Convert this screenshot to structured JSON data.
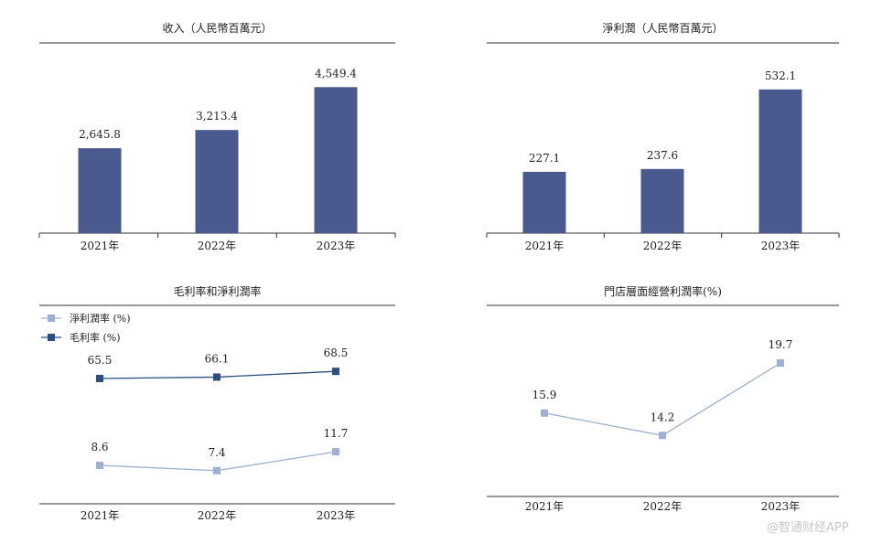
{
  "colors": {
    "bar": "#4a5a8e",
    "line_dark": "#2c4f80",
    "line_light": "#9db0d2",
    "axis": "#333333"
  },
  "watermark": "@智通财经APP",
  "chart_data": [
    {
      "id": "revenue",
      "type": "bar",
      "title": "收入（人民幣百萬元）",
      "categories": [
        "2021年",
        "2022年",
        "2023年"
      ],
      "values": [
        2645.8,
        3213.4,
        4549.4
      ],
      "value_labels": [
        "2,645.8",
        "3,213.4",
        "4,549.4"
      ],
      "ylim": [
        0,
        4700
      ]
    },
    {
      "id": "net-profit",
      "type": "bar",
      "title": "淨利潤（人民幣百萬元）",
      "categories": [
        "2021年",
        "2022年",
        "2023年"
      ],
      "values": [
        227.1,
        237.6,
        532.1
      ],
      "value_labels": [
        "227.1",
        "237.6",
        "532.1"
      ],
      "ylim": [
        0,
        545
      ]
    },
    {
      "id": "margins",
      "type": "line",
      "title": "毛利率和淨利潤率",
      "categories": [
        "2021年",
        "2022年",
        "2023年"
      ],
      "series": [
        {
          "name": "淨利潤率 (%)",
          "values": [
            8.6,
            7.4,
            11.7
          ],
          "value_labels": [
            "8.6",
            "7.4",
            "11.7"
          ]
        },
        {
          "name": "毛利率 (%)",
          "values": [
            65.5,
            66.1,
            68.5
          ],
          "value_labels": [
            "65.5",
            "66.1",
            "68.5"
          ]
        }
      ],
      "legend": "top-left",
      "ylim": [
        -10,
        90
      ]
    },
    {
      "id": "store-margin",
      "type": "line",
      "title": "門店層面經營利潤率(%)",
      "categories": [
        "2021年",
        "2022年",
        "2023年"
      ],
      "series": [
        {
          "name": "門店層面經營利潤率",
          "values": [
            15.9,
            14.2,
            19.7
          ],
          "value_labels": [
            "15.9",
            "14.2",
            "19.7"
          ]
        }
      ],
      "ylim": [
        10.4,
        21.3
      ]
    }
  ]
}
